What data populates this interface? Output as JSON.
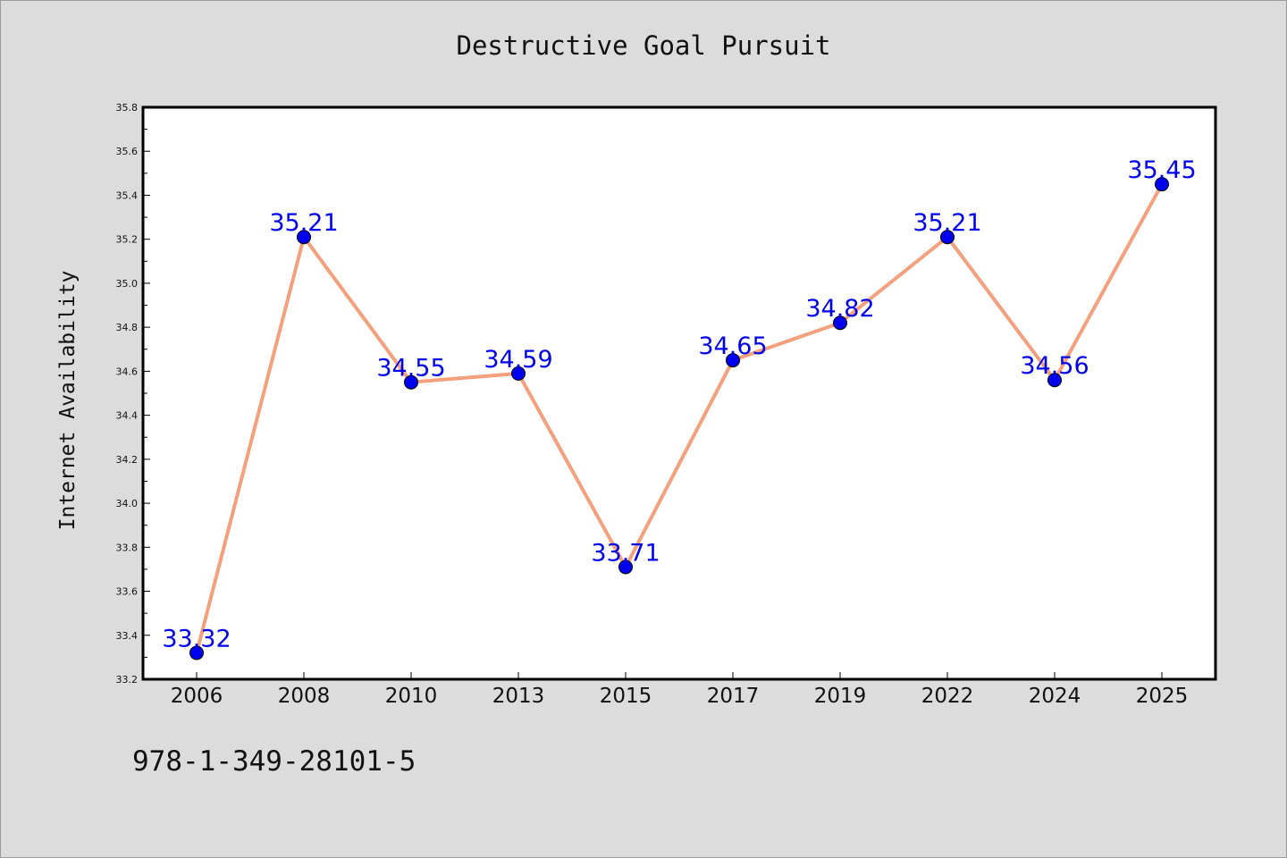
{
  "chart_data": {
    "type": "line",
    "title": "Destructive Goal Pursuit",
    "xlabel": "",
    "ylabel": "Internet Availability",
    "categories": [
      "2006",
      "2008",
      "2010",
      "2013",
      "2015",
      "2017",
      "2019",
      "2022",
      "2024",
      "2025"
    ],
    "series": [
      {
        "values": [
          33.32,
          35.21,
          34.55,
          34.59,
          33.71,
          34.65,
          34.82,
          35.21,
          34.56,
          35.45
        ],
        "data_labels": [
          "33.32",
          "35.21",
          "34.55",
          "34.59",
          "33.71",
          "34.65",
          "34.82",
          "35.21",
          "34.56",
          "35.45"
        ],
        "line_color": "#f4a07c",
        "marker_color": "#0000ee"
      }
    ],
    "ylim": [
      33.2,
      35.8
    ],
    "yticks": [
      "33.2",
      "33.4",
      "33.6",
      "33.8",
      "34.0",
      "34.2",
      "34.4",
      "34.6",
      "34.8",
      "35.0",
      "35.2",
      "35.4",
      "35.6",
      "35.8"
    ],
    "grid": false,
    "label_color": "#0000ee"
  },
  "footer_text": "978-1-349-28101-5",
  "colors": {
    "background": "#dcdcdc",
    "plot_background": "#ffffff"
  }
}
